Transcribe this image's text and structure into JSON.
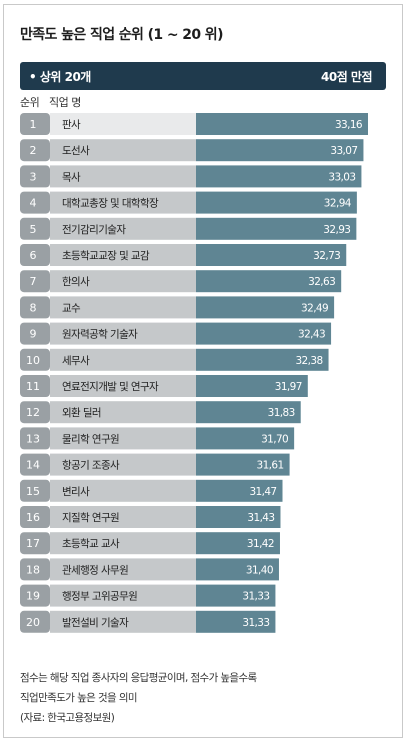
{
  "title": "만족도 높은 직업 순위 (1 ~ 20 위)",
  "header": {
    "left": "• 상위 20개",
    "right": "40점 만점"
  },
  "columns": {
    "rank": "순위",
    "job": "직업 명"
  },
  "chart_data": {
    "type": "bar",
    "orientation": "horizontal",
    "title": "만족도 높은 직업 순위 (1 ~ 20 위)",
    "ranks": [
      "1",
      "2",
      "3",
      "4",
      "5",
      "6",
      "7",
      "8",
      "9",
      "10",
      "11",
      "12",
      "13",
      "14",
      "15",
      "16",
      "17",
      "18",
      "19",
      "20"
    ],
    "categories": [
      "판사",
      "도선사",
      "목사",
      "대학교총장 및 대학학장",
      "전기감리기술자",
      "초등학교교장 및 교감",
      "한의사",
      "교수",
      "원자력공학 기술자",
      "세무사",
      "연료전지개발 및 연구자",
      "외환 딜러",
      "물리학 연구원",
      "항공기 조종사",
      "변리사",
      "지질학 연구원",
      "초등학교 교사",
      "관세행정 사무원",
      "행정부 고위공무원",
      "발전설비 기술자"
    ],
    "values": [
      33.16,
      33.07,
      33.03,
      32.94,
      32.93,
      32.73,
      32.63,
      32.49,
      32.43,
      32.38,
      31.97,
      31.83,
      31.7,
      31.61,
      31.47,
      31.43,
      31.42,
      31.4,
      31.33,
      31.33
    ],
    "value_labels": [
      "33,16",
      "33,07",
      "33,03",
      "32,94",
      "32,93",
      "32,73",
      "32,63",
      "32,49",
      "32,43",
      "32,38",
      "31,97",
      "31,83",
      "31,70",
      "31,61",
      "31,47",
      "31,43",
      "31,42",
      "31,40",
      "31,33",
      "31,33"
    ],
    "scale_max": 40,
    "colors": {
      "bar": "#5f8593",
      "rank_bg": "#9aa0a4",
      "label_bg": "#c5c8ca",
      "top_label_bg": "#e9eaeb",
      "header_bg": "#1f3a4d"
    }
  },
  "notes": [
    "점수는 해당 직업 종사자의 응답평균이며, 점수가 높을수록",
    "직업만족도가 높은 것을 의미",
    "(자료: 한국고용정보원)"
  ]
}
